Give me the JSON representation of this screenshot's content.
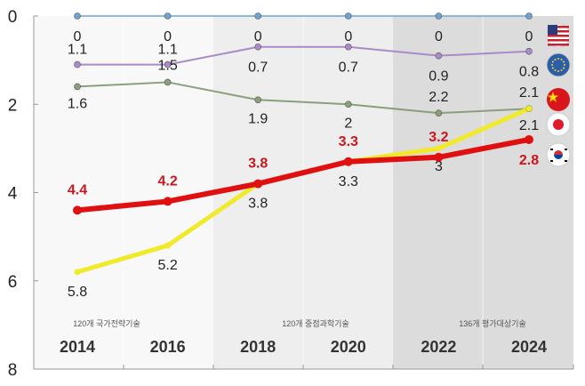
{
  "chart_data": {
    "type": "line",
    "title": "",
    "xlabel": "",
    "ylabel": "",
    "x": [
      "2014",
      "2016",
      "2018",
      "2020",
      "2022",
      "2024"
    ],
    "ylim": [
      0,
      8
    ],
    "y_inverted": true,
    "y_ticks": [
      "0",
      "2",
      "4",
      "6",
      "8"
    ],
    "grid": false,
    "legend": "right (flag icons)",
    "period_labels": [
      {
        "text": "120개 국가전략기술",
        "years": [
          "2014",
          "2016"
        ]
      },
      {
        "text": "120개 중점과학기술",
        "years": [
          "2018",
          "2020"
        ]
      },
      {
        "text": "136개 평가대상기술",
        "years": [
          "2022",
          "2024"
        ]
      }
    ],
    "series": [
      {
        "flag": "us-flag",
        "color": "#6fa3d2",
        "values": [
          0,
          0,
          0,
          0,
          0,
          0
        ],
        "label_color": "#222222"
      },
      {
        "flag": "eu-flag",
        "color": "#a98bc9",
        "values": [
          1.1,
          1.1,
          0.7,
          0.7,
          0.9,
          0.8
        ],
        "label_color": "#222222"
      },
      {
        "flag": "china-flag",
        "color": "#8a9f7c",
        "values": [
          1.6,
          1.5,
          1.9,
          2,
          2.2,
          2.1
        ],
        "label_color": "#222222"
      },
      {
        "flag": "japan-flag",
        "color": "#f0ea2a",
        "values": [
          5.8,
          5.2,
          3.8,
          3.3,
          3,
          2.1
        ],
        "label_color": "#222222"
      },
      {
        "flag": "korea-flag",
        "color": "#e01010",
        "values": [
          4.4,
          4.2,
          3.8,
          3.3,
          3.2,
          2.8
        ],
        "label_color": "#c8161d"
      }
    ]
  }
}
